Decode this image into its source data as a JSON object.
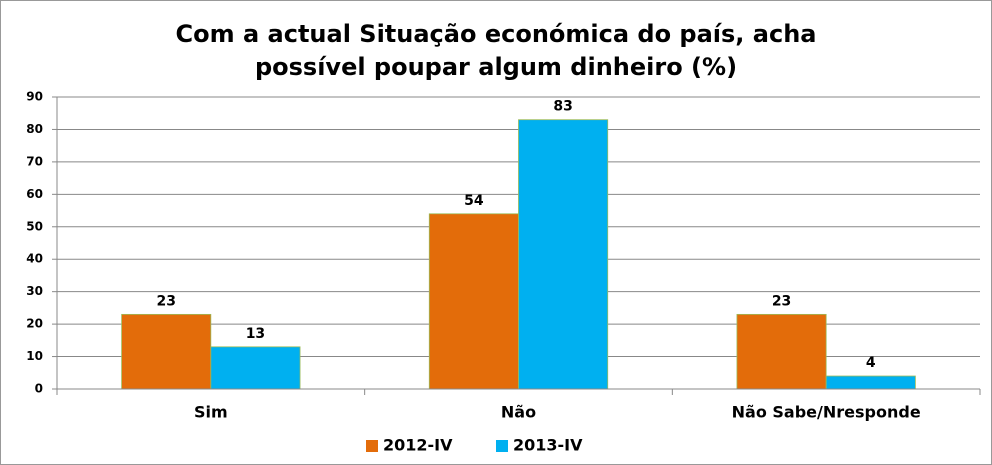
{
  "chart_data": {
    "type": "bar",
    "title": "Com a actual Situação económica do país, acha possível poupar algum dinheiro (%)",
    "categories": [
      "Sim",
      "Não",
      "Não Sabe/Nresponde"
    ],
    "series": [
      {
        "name": "2012-IV",
        "color": "#e36c0a",
        "values": [
          23,
          54,
          23
        ]
      },
      {
        "name": "2013-IV",
        "color": "#00b0f0",
        "values": [
          13,
          83,
          4
        ]
      }
    ],
    "ylim": [
      0,
      90
    ],
    "yticks": [
      0,
      10,
      20,
      30,
      40,
      50,
      60,
      70,
      80,
      90
    ],
    "grid": true,
    "legend": "bottom"
  }
}
